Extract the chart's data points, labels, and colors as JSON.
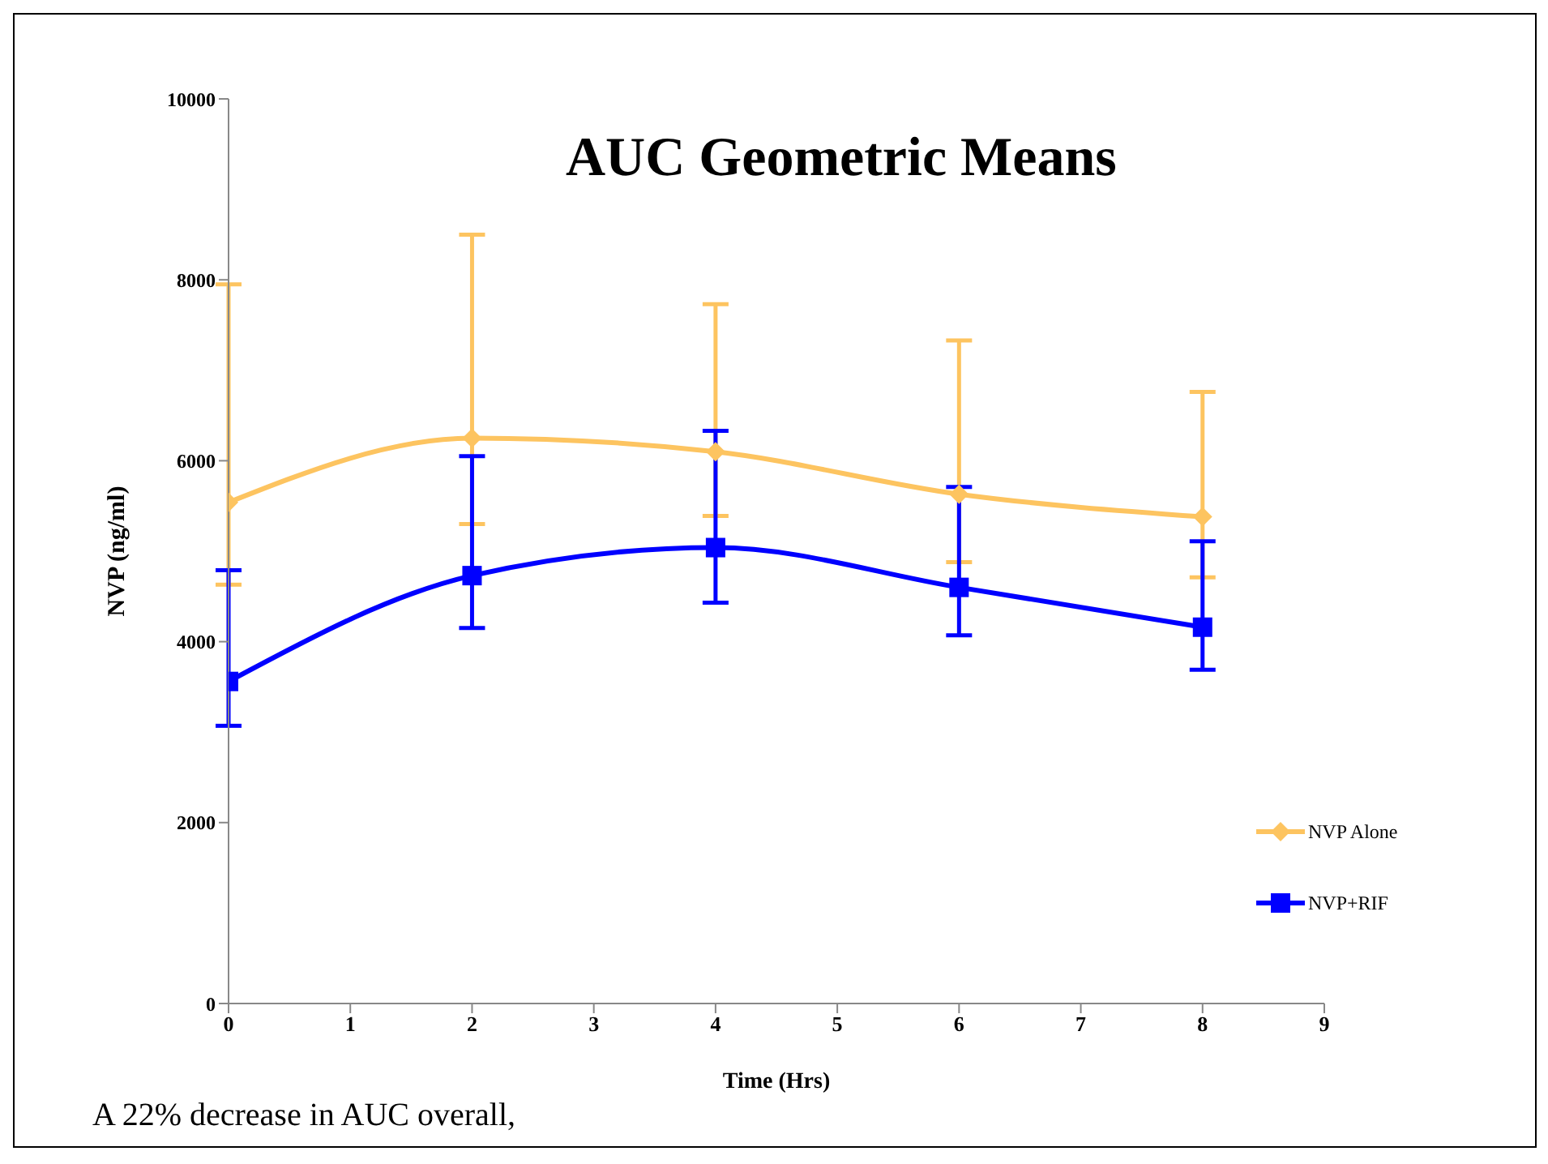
{
  "chart_data": {
    "type": "line",
    "title": "AUC Geometric Means",
    "xlabel": "Time (Hrs)",
    "ylabel": "NVP (ng/ml)",
    "x": [
      0,
      2,
      4,
      6,
      8
    ],
    "series": [
      {
        "name": "NVP Alone",
        "color": "#fdc460",
        "marker": "diamond",
        "values": [
          5540,
          6250,
          6100,
          5630,
          5380
        ],
        "errors": [
          [
            4630,
            7950
          ],
          [
            5300,
            8500
          ],
          [
            5390,
            7730
          ],
          [
            4880,
            7330
          ],
          [
            4710,
            6760
          ]
        ]
      },
      {
        "name": "NVP+RIF",
        "color": "#0000ff",
        "marker": "square",
        "values": [
          3560,
          4730,
          5040,
          4600,
          4160
        ],
        "errors": [
          [
            3070,
            4790
          ],
          [
            4150,
            6050
          ],
          [
            4430,
            6330
          ],
          [
            4070,
            5710
          ],
          [
            3690,
            5110
          ]
        ]
      }
    ],
    "xlim": [
      0,
      9
    ],
    "xticks": [
      0,
      1,
      2,
      3,
      4,
      5,
      6,
      7,
      8,
      9
    ],
    "ylim": [
      0,
      10000
    ],
    "yticks": [
      0,
      2000,
      4000,
      6000,
      8000,
      10000
    ],
    "grid": false,
    "legend": "right",
    "line_style": "solid",
    "annotations": [
      "A 22% decrease in AUC overall,"
    ]
  }
}
